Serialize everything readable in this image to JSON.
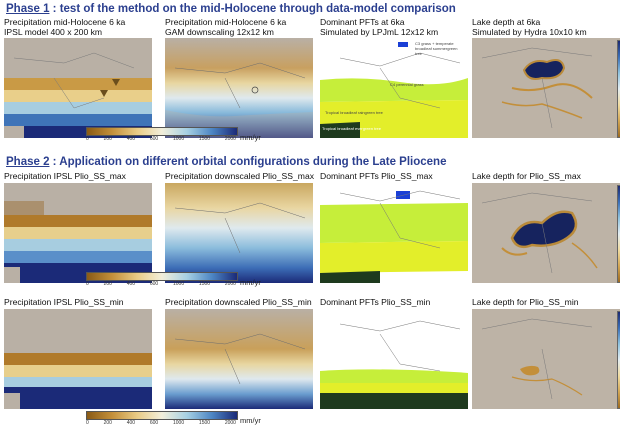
{
  "phase1": {
    "label": "Phase 1",
    "title": " : test of the method on the mid-Holocene through data-model comparison",
    "panels": [
      {
        "line1": "Precipitation mid-Holocene 6 ka",
        "line2": "IPSL model 400 x 200 km",
        "kind": "coarse"
      },
      {
        "line1": "Precipitation mid-Holocene 6 ka",
        "line2": "GAM downscaling 12x12 km",
        "kind": "fine"
      },
      {
        "line1": "Dominant PFTs at 6ka",
        "line2": "Simulated by LPJmL 12x12 km",
        "kind": "pft"
      },
      {
        "line1": "Lake depth at 6ka",
        "line2": "Simulated by Hydra 10x10 km",
        "kind": "lake"
      }
    ],
    "pft_labels": [
      "C3 grass + temperate broadleaf summergreen tree",
      "C4 perennial grass",
      "Tropical broadleaf raingreen tree",
      "Tropical broadleaf evergreen tree"
    ]
  },
  "phase2": {
    "label": "Phase 2",
    "title": " : Application on different orbital configurations during the Late Pliocene",
    "rows": [
      {
        "panels": [
          {
            "line1": "Precipitation IPSL Plio_SS_max",
            "kind": "coarse"
          },
          {
            "line1": "Precipitation downscaled Plio_SS_max",
            "kind": "fine"
          },
          {
            "line1": "Dominant PFTs Plio_SS_max",
            "kind": "pft"
          },
          {
            "line1": "Lake depth for Plio_SS_max",
            "kind": "lake"
          }
        ]
      },
      {
        "panels": [
          {
            "line1": "Precipitation IPSL Plio_SS_min",
            "kind": "coarse"
          },
          {
            "line1": "Precipitation downscaled Plio_SS_min",
            "kind": "fine"
          },
          {
            "line1": "Dominant PFTs Plio_SS_min",
            "kind": "pft"
          },
          {
            "line1": "Lake depth for Plio_SS_min",
            "kind": "lake"
          }
        ]
      }
    ]
  },
  "legend": {
    "unit": "mm/yr",
    "ticks": [
      "0",
      "200",
      "400",
      "600",
      "1000",
      "1500",
      "2000"
    ]
  },
  "colors": {
    "title_blue": "#2b3f8f",
    "land": "#b9b0a5",
    "dry": "#b07a2a",
    "wet": "#1b2a78",
    "c4_grass": "#c6ee3a",
    "raingreen": "#e3ee2a",
    "evergreen": "#1e3a1e",
    "lake": "#16235e"
  }
}
